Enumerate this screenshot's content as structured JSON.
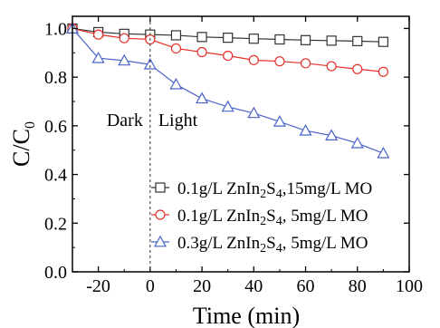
{
  "chart_data": {
    "type": "line",
    "xlabel": "Time (min)",
    "ylabel_main": "C/C",
    "ylabel_sub": "0",
    "xlim": [
      -30,
      100
    ],
    "ylim": [
      0.0,
      1.05
    ],
    "xticks": [
      -20,
      0,
      20,
      40,
      60,
      80,
      100
    ],
    "xtick_labels": [
      "-20",
      "0",
      "20",
      "40",
      "60",
      "80",
      "100"
    ],
    "yticks": [
      0.0,
      0.2,
      0.4,
      0.6,
      0.8,
      1.0
    ],
    "ytick_labels": [
      "0.0",
      "0.2",
      "0.4",
      "0.6",
      "0.8",
      "1.0"
    ],
    "grid": false,
    "divider_x": 0,
    "annotations": {
      "dark": "Dark",
      "light": "Light"
    },
    "legend_position": "bottom-right",
    "series": [
      {
        "legend_parts": [
          "0.1g/L ZnIn",
          "2",
          "S",
          "4",
          ",15mg/L MO"
        ],
        "marker": "square",
        "color": "#333333",
        "x": [
          -30,
          -20,
          -10,
          0,
          10,
          20,
          30,
          40,
          50,
          60,
          70,
          80,
          90
        ],
        "y": [
          1.0,
          0.985,
          0.978,
          0.975,
          0.972,
          0.965,
          0.962,
          0.958,
          0.955,
          0.952,
          0.95,
          0.948,
          0.945
        ]
      },
      {
        "legend_parts": [
          "0.1g/L ZnIn",
          "2",
          "S",
          "4",
          ",  5mg/L MO"
        ],
        "marker": "circle",
        "color": "#e8302a",
        "x": [
          -30,
          -20,
          -10,
          0,
          10,
          20,
          30,
          40,
          50,
          60,
          70,
          80,
          90
        ],
        "y": [
          1.0,
          0.975,
          0.96,
          0.955,
          0.918,
          0.903,
          0.888,
          0.87,
          0.865,
          0.857,
          0.845,
          0.833,
          0.822
        ]
      },
      {
        "legend_parts": [
          "0.3g/L ZnIn",
          "2",
          "S",
          "4",
          ",  5mg/L MO"
        ],
        "marker": "triangle",
        "color": "#4a63c8",
        "x": [
          -30,
          -20,
          -10,
          0,
          10,
          20,
          30,
          40,
          50,
          60,
          70,
          80,
          90
        ],
        "y": [
          1.0,
          0.878,
          0.868,
          0.852,
          0.77,
          0.712,
          0.678,
          0.652,
          0.617,
          0.58,
          0.56,
          0.528,
          0.487
        ]
      }
    ]
  }
}
